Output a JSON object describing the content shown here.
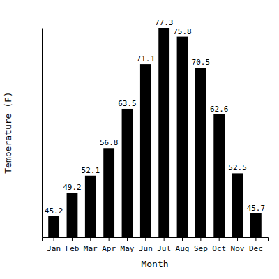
{
  "chart_data": {
    "type": "bar",
    "x_label": "Month",
    "y_label": "Temperature (F)",
    "categories": [
      "Jan",
      "Feb",
      "Mar",
      "Apr",
      "May",
      "Jun",
      "Jul",
      "Aug",
      "Sep",
      "Oct",
      "Nov",
      "Dec"
    ],
    "values": [
      45.2,
      49.2,
      52.1,
      56.8,
      63.5,
      71.1,
      77.3,
      75.8,
      70.5,
      62.6,
      52.5,
      45.7
    ],
    "color": "#000000",
    "ylim": [
      41.6,
      77.3
    ],
    "grid": false,
    "data_labels": true,
    "tick_labels": "x"
  }
}
